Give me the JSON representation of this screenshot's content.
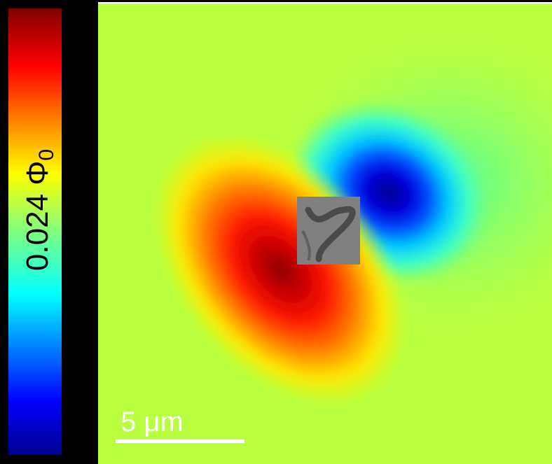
{
  "colorbar": {
    "label": "0.024 Φ",
    "label_subscript": "0"
  },
  "scale_bar": {
    "label": "5 μm"
  }
}
